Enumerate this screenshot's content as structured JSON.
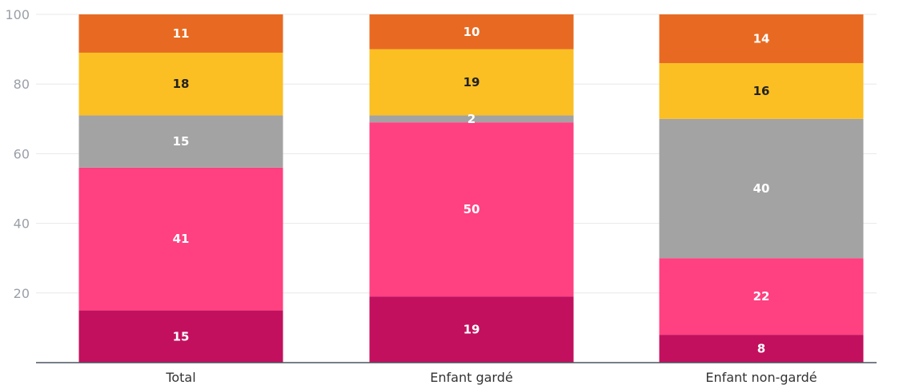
{
  "chart_data": {
    "type": "bar",
    "stacked": true,
    "categories": [
      "Total",
      "Enfant gardé",
      "Enfant non-gardé"
    ],
    "series": [
      {
        "values": [
          15,
          19,
          8
        ],
        "color": "#c2105e"
      },
      {
        "values": [
          41,
          50,
          22
        ],
        "color": "#ff4081"
      },
      {
        "values": [
          15,
          2,
          40
        ],
        "color": "#a3a3a3"
      },
      {
        "values": [
          18,
          19,
          16
        ],
        "color": "#fbbf24"
      },
      {
        "values": [
          11,
          10,
          14
        ],
        "color": "#e86a22"
      }
    ],
    "ylim": [
      0,
      100
    ],
    "yticks": [
      20,
      40,
      60,
      80,
      100
    ],
    "grid": true,
    "title": "",
    "xlabel": "",
    "ylabel": ""
  }
}
